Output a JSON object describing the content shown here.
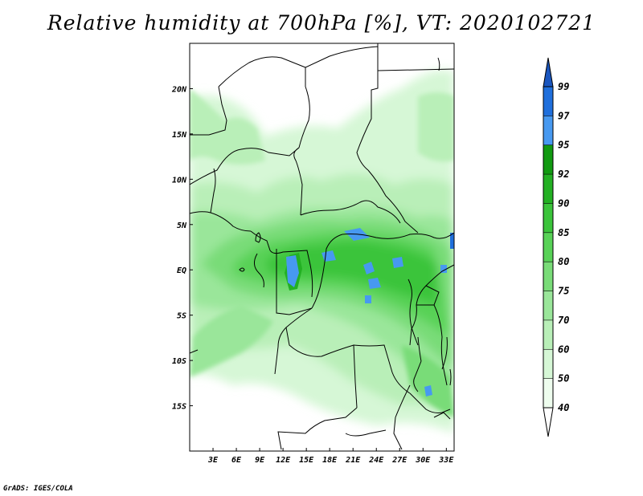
{
  "title": "Relative humidity at 700hPa [%], VT: 2020102721",
  "credit": "GrADS: IGES/COLA",
  "map": {
    "lon_range": [
      0,
      34
    ],
    "lat_range": [
      -20,
      25
    ],
    "x_ticks": [
      "3E",
      "6E",
      "9E",
      "12E",
      "15E",
      "18E",
      "21E",
      "24E",
      "27E",
      "30E",
      "33E"
    ],
    "x_tick_values": [
      3,
      6,
      9,
      12,
      15,
      18,
      21,
      24,
      27,
      30,
      33
    ],
    "y_ticks": [
      "20N",
      "15N",
      "10N",
      "5N",
      "EQ",
      "5S",
      "10S",
      "15S"
    ],
    "y_tick_values": [
      20,
      15,
      10,
      5,
      0,
      -5,
      -10,
      -15
    ]
  },
  "colorbar": {
    "levels": [
      "40",
      "50",
      "60",
      "70",
      "75",
      "80",
      "85",
      "90",
      "92",
      "95",
      "97",
      "99"
    ],
    "colors": [
      "#eefdee",
      "#d6f7d6",
      "#b9efb8",
      "#9ae69a",
      "#79dc78",
      "#58d257",
      "#3bc43b",
      "#23b023",
      "#119a11",
      "#4799f0",
      "#1f6fdc",
      "#1a56bf"
    ],
    "below_color": "#ffffff",
    "above_color": "#1a56bf"
  }
}
